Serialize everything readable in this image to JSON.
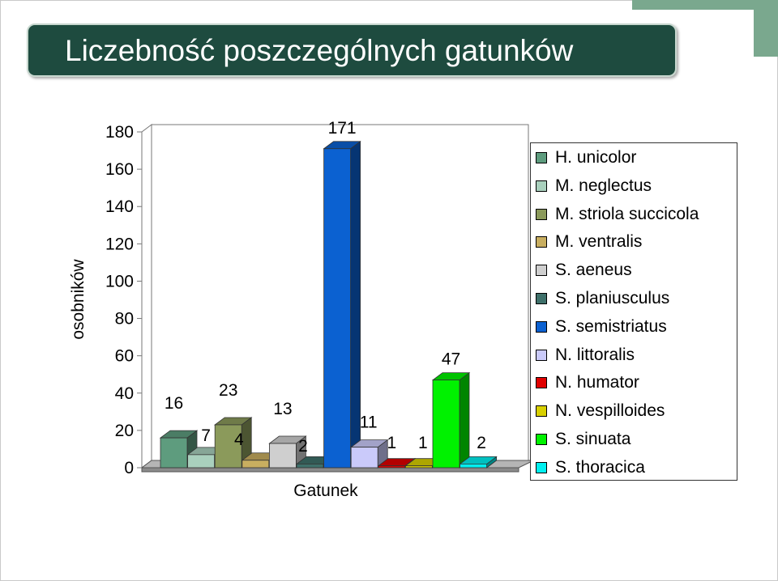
{
  "title": "Liczebność poszczególnych gatunków",
  "chart_data": {
    "type": "bar",
    "xlabel": "Gatunek",
    "ylabel": "osobników",
    "ylim": [
      0,
      180
    ],
    "yticks": [
      0,
      20,
      40,
      60,
      80,
      100,
      120,
      140,
      160,
      180
    ],
    "categories": [
      "H. unicolor",
      "M. neglectus",
      "M. striola succicola",
      "M. ventralis",
      "S. aeneus",
      "S. planiusculus",
      "S. semistriatus",
      "N. littoralis",
      "N. humator",
      "N. vespilloides",
      "S. sinuata",
      "S. thoracica"
    ],
    "values": [
      16,
      7,
      23,
      4,
      13,
      2,
      171,
      11,
      1,
      1,
      47,
      2
    ],
    "data_labels": [
      "16",
      "7",
      "23",
      "4",
      "13",
      "2",
      "171",
      "11",
      "1",
      "1",
      "47",
      "2"
    ],
    "colors": [
      "#5e9c7e",
      "#a9d0bd",
      "#8b9a5b",
      "#c8ae60",
      "#cfcfcf",
      "#3e706a",
      "#0b61d1",
      "#cacafa",
      "#e00000",
      "#d8d000",
      "#00f200",
      "#00f0f0"
    ],
    "grid": false,
    "legend_position": "right"
  }
}
